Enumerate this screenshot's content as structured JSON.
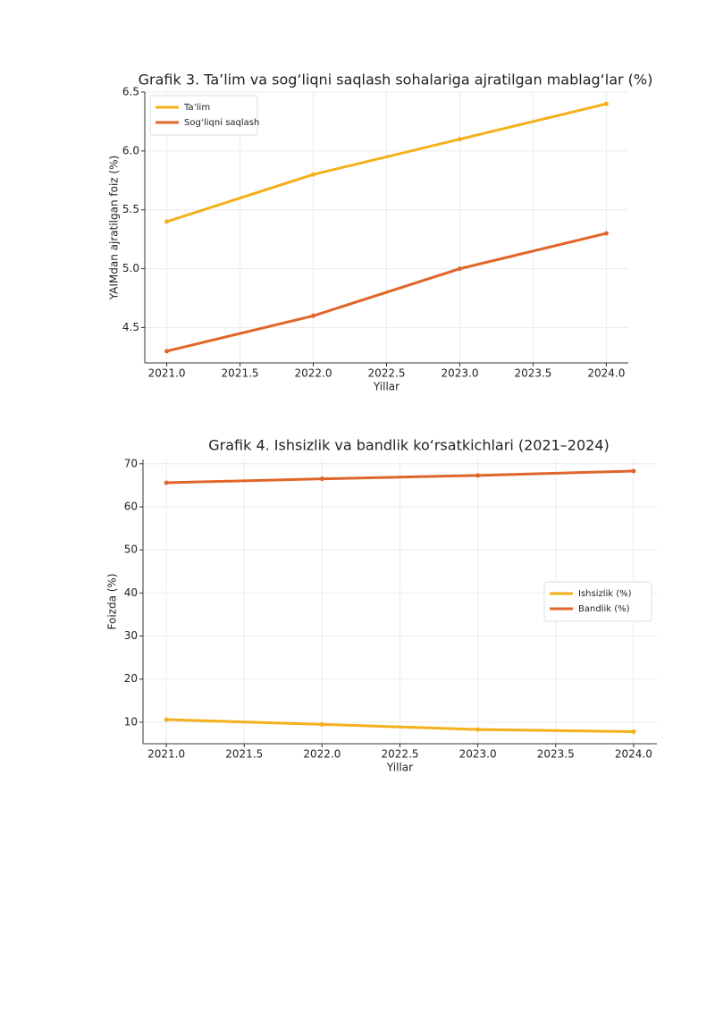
{
  "chart_data": [
    {
      "type": "line",
      "title": "Grafik 3. Ta’lim va sog‘liqni saqlash sohalariga ajratilgan mablag‘lar (%)",
      "x_label": "Yillar",
      "y_label": "YAIMdan ajratilgan foiz (%)",
      "x": [
        2021,
        2022,
        2023,
        2024
      ],
      "series": [
        {
          "name": "Ta’lim",
          "color": "#f4b01b",
          "values": [
            5.4,
            5.8,
            6.1,
            6.4
          ]
        },
        {
          "name": "Sog‘liqni saqlash",
          "color": "#e0662a",
          "values": [
            4.3,
            4.6,
            5.0,
            5.3
          ]
        }
      ],
      "xlim": [
        2020.85,
        2024.15
      ],
      "xticks": [
        {
          "value": 2021,
          "label": "2021.0"
        },
        2021.5,
        {
          "value": 2022,
          "label": "2022.0"
        },
        2022.5,
        {
          "value": 2023,
          "label": "2023.0"
        },
        2023.5,
        {
          "value": 2024,
          "label": "2024.0"
        }
      ],
      "ylim": [
        4.2,
        6.5
      ],
      "yticks": [
        4.5,
        {
          "value": 5,
          "label": "5.0"
        },
        5.5,
        {
          "value": 6,
          "label": "6.0"
        },
        6.5
      ],
      "grid": true,
      "legend": "upper left"
    },
    {
      "type": "line",
      "title": "Grafik 4. Ishsizlik va bandlik ko‘rsatkichlari (2021–2024)",
      "x_label": "Yillar",
      "y_label": "Foizda (%)",
      "x": [
        2021,
        2022,
        2023,
        2024
      ],
      "series": [
        {
          "name": "Ishsizlik (%)",
          "color": "#f4b01b",
          "values": [
            10.6,
            9.5,
            8.3,
            7.8
          ]
        },
        {
          "name": "Bandlik (%)",
          "color": "#e0662a",
          "values": [
            65.6,
            66.5,
            67.3,
            68.3
          ]
        }
      ],
      "xlim": [
        2020.85,
        2024.15
      ],
      "xticks": [
        {
          "value": 2021,
          "label": "2021.0"
        },
        2021.5,
        {
          "value": 2022,
          "label": "2022.0"
        },
        2022.5,
        {
          "value": 2023,
          "label": "2023.0"
        },
        2023.5,
        {
          "value": 2024,
          "label": "2024.0"
        }
      ],
      "ylim": [
        5,
        71
      ],
      "yticks": [
        10,
        20,
        30,
        40,
        50,
        60,
        70
      ],
      "grid": true,
      "legend": "center right"
    }
  ]
}
